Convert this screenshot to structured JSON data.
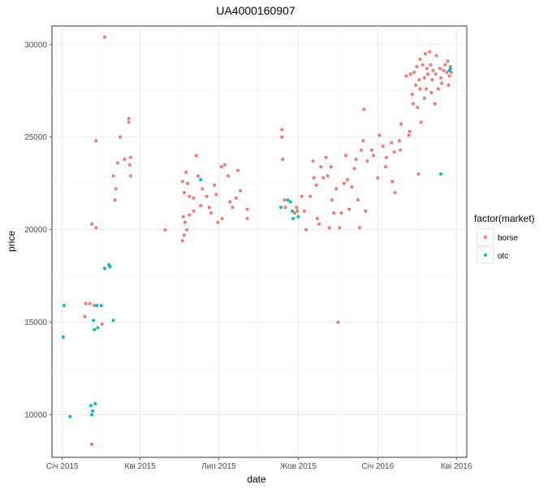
{
  "chart_data": {
    "type": "scatter",
    "title": "UA4000160907",
    "xlabel": "date",
    "ylabel": "price",
    "legend_title": "factor(market)",
    "legend_position": "right",
    "grid": true,
    "xlim": [
      "2014-12-20",
      "2016-04-13"
    ],
    "ylim": [
      7700,
      31000
    ],
    "x_ticks": [
      {
        "value": "2015-01-01",
        "label": "Січ 2015"
      },
      {
        "value": "2015-04-01",
        "label": "Кві 2015"
      },
      {
        "value": "2015-07-01",
        "label": "Лип 2015"
      },
      {
        "value": "2015-10-01",
        "label": "Жов 2015"
      },
      {
        "value": "2016-01-01",
        "label": "Січ 2016"
      },
      {
        "value": "2016-04-01",
        "label": "Кві 2016"
      }
    ],
    "y_ticks": [
      10000,
      15000,
      20000,
      25000,
      30000
    ],
    "series": [
      {
        "name": "borse",
        "color": "#f8766d",
        "points": [
          [
            "2015-01-28",
            16000
          ],
          [
            "2015-01-27",
            15300
          ],
          [
            "2015-02-02",
            16000
          ],
          [
            "2015-02-04",
            20300
          ],
          [
            "2015-02-07",
            15900
          ],
          [
            "2015-02-09",
            20100
          ],
          [
            "2015-02-09",
            24800
          ],
          [
            "2015-02-16",
            14900
          ],
          [
            "2015-02-19",
            30400
          ],
          [
            "2015-02-04",
            8400
          ],
          [
            "2015-03-01",
            22900
          ],
          [
            "2015-03-03",
            21600
          ],
          [
            "2015-03-04",
            22200
          ],
          [
            "2015-03-06",
            23600
          ],
          [
            "2015-03-09",
            25000
          ],
          [
            "2015-03-14",
            23800
          ],
          [
            "2015-03-19",
            26000
          ],
          [
            "2015-03-19",
            25800
          ],
          [
            "2015-03-20",
            23500
          ],
          [
            "2015-03-21",
            23900
          ],
          [
            "2015-03-21",
            22900
          ],
          [
            "2015-04-30",
            20000
          ],
          [
            "2015-05-20",
            22600
          ],
          [
            "2015-05-22",
            22000
          ],
          [
            "2015-05-24",
            23100
          ],
          [
            "2015-05-26",
            22500
          ],
          [
            "2015-05-28",
            21800
          ],
          [
            "2015-05-21",
            20700
          ],
          [
            "2015-05-23",
            20400
          ],
          [
            "2015-05-25",
            20000
          ],
          [
            "2015-05-20",
            19400
          ],
          [
            "2015-05-22",
            19700
          ],
          [
            "2015-05-28",
            20800
          ],
          [
            "2015-06-02",
            21000
          ],
          [
            "2015-06-02",
            21700
          ],
          [
            "2015-06-05",
            24000
          ],
          [
            "2015-06-07",
            22900
          ],
          [
            "2015-06-10",
            21300
          ],
          [
            "2015-06-12",
            22200
          ],
          [
            "2015-06-17",
            21800
          ],
          [
            "2015-06-20",
            21200
          ],
          [
            "2015-06-22",
            20900
          ],
          [
            "2015-06-26",
            22400
          ],
          [
            "2015-06-28",
            21900
          ],
          [
            "2015-06-30",
            20400
          ],
          [
            "2015-07-04",
            23400
          ],
          [
            "2015-07-05",
            20600
          ],
          [
            "2015-07-08",
            23500
          ],
          [
            "2015-07-12",
            22900
          ],
          [
            "2015-07-14",
            21500
          ],
          [
            "2015-07-17",
            21200
          ],
          [
            "2015-07-21",
            21700
          ],
          [
            "2015-07-23",
            23200
          ],
          [
            "2015-07-26",
            22100
          ],
          [
            "2015-08-03",
            21100
          ],
          [
            "2015-08-03",
            20600
          ],
          [
            "2015-09-12",
            25400
          ],
          [
            "2015-09-12",
            25000
          ],
          [
            "2015-09-13",
            23800
          ],
          [
            "2015-09-15",
            21600
          ],
          [
            "2015-09-16",
            21200
          ],
          [
            "2015-09-27",
            20900
          ],
          [
            "2015-09-29",
            21200
          ],
          [
            "2015-09-30",
            21000
          ],
          [
            "2015-10-05",
            21800
          ],
          [
            "2015-10-08",
            21000
          ],
          [
            "2015-10-10",
            20000
          ],
          [
            "2015-10-15",
            21800
          ],
          [
            "2015-10-18",
            23700
          ],
          [
            "2015-10-19",
            22800
          ],
          [
            "2015-10-22",
            22400
          ],
          [
            "2015-10-23",
            20600
          ],
          [
            "2015-10-25",
            20300
          ],
          [
            "2015-10-27",
            23400
          ],
          [
            "2015-10-30",
            22800
          ],
          [
            "2015-11-02",
            23900
          ],
          [
            "2015-11-04",
            22900
          ],
          [
            "2015-11-06",
            20100
          ],
          [
            "2015-11-08",
            23400
          ],
          [
            "2015-11-09",
            21600
          ],
          [
            "2015-11-11",
            20900
          ],
          [
            "2015-11-14",
            22200
          ],
          [
            "2015-11-16",
            15000
          ],
          [
            "2015-11-18",
            20100
          ],
          [
            "2015-11-20",
            20900
          ],
          [
            "2015-11-23",
            22500
          ],
          [
            "2015-11-25",
            24000
          ],
          [
            "2015-11-27",
            22700
          ],
          [
            "2015-11-29",
            21100
          ],
          [
            "2015-12-02",
            22300
          ],
          [
            "2015-12-05",
            23300
          ],
          [
            "2015-12-07",
            23800
          ],
          [
            "2015-12-09",
            21600
          ],
          [
            "2015-12-11",
            20100
          ],
          [
            "2015-12-13",
            24300
          ],
          [
            "2015-12-15",
            24800
          ],
          [
            "2015-12-16",
            26500
          ],
          [
            "2015-12-18",
            21000
          ],
          [
            "2015-12-20",
            23700
          ],
          [
            "2015-12-25",
            24300
          ],
          [
            "2015-12-27",
            24000
          ],
          [
            "2016-01-01",
            22800
          ],
          [
            "2016-01-03",
            25100
          ],
          [
            "2016-01-07",
            24500
          ],
          [
            "2016-01-10",
            23400
          ],
          [
            "2016-01-11",
            23900
          ],
          [
            "2016-01-17",
            24700
          ],
          [
            "2016-01-18",
            22600
          ],
          [
            "2016-01-20",
            24200
          ],
          [
            "2016-01-21",
            22000
          ],
          [
            "2016-01-26",
            24800
          ],
          [
            "2016-01-27",
            24300
          ],
          [
            "2016-01-28",
            25700
          ],
          [
            "2016-02-03",
            28300
          ],
          [
            "2016-02-06",
            25100
          ],
          [
            "2016-02-07",
            25300
          ],
          [
            "2016-02-08",
            28400
          ],
          [
            "2016-02-10",
            27300
          ],
          [
            "2016-02-12",
            28500
          ],
          [
            "2016-02-14",
            27800
          ],
          [
            "2016-02-15",
            28800
          ],
          [
            "2016-02-16",
            26600
          ],
          [
            "2016-02-17",
            23000
          ],
          [
            "2016-02-18",
            28100
          ],
          [
            "2016-02-19",
            29200
          ],
          [
            "2016-02-20",
            25800
          ],
          [
            "2016-02-22",
            28900
          ],
          [
            "2016-02-24",
            28200
          ],
          [
            "2016-02-25",
            29500
          ],
          [
            "2016-02-26",
            27600
          ],
          [
            "2016-02-27",
            28700
          ],
          [
            "2016-02-28",
            28400
          ],
          [
            "2016-03-01",
            29600
          ],
          [
            "2016-03-03",
            27400
          ],
          [
            "2016-03-04",
            28100
          ],
          [
            "2016-03-05",
            28600
          ],
          [
            "2016-03-07",
            26800
          ],
          [
            "2016-03-08",
            28400
          ],
          [
            "2016-03-09",
            29400
          ],
          [
            "2016-03-11",
            27600
          ],
          [
            "2016-03-13",
            28700
          ],
          [
            "2016-03-15",
            27900
          ],
          [
            "2016-03-17",
            28600
          ],
          [
            "2016-03-19",
            28900
          ],
          [
            "2016-03-21",
            28500
          ],
          [
            "2016-03-22",
            29100
          ],
          [
            "2016-03-23",
            27800
          ],
          [
            "2016-03-24",
            28300
          ],
          [
            "2016-03-25",
            28800
          ],
          [
            "2016-03-26",
            28500
          ],
          [
            "2016-02-24",
            27100
          ],
          [
            "2016-02-11",
            26800
          ],
          [
            "2016-02-19",
            27600
          ],
          [
            "2016-03-02",
            28900
          ],
          [
            "2016-03-14",
            28200
          ]
        ]
      },
      {
        "name": "otc",
        "color": "#00bfc4",
        "points": [
          [
            "2015-01-03",
            15900
          ],
          [
            "2015-01-02",
            14200
          ],
          [
            "2015-01-10",
            9900
          ],
          [
            "2015-02-03",
            10500
          ],
          [
            "2015-02-05",
            10200
          ],
          [
            "2015-02-08",
            10600
          ],
          [
            "2015-02-04",
            10000
          ],
          [
            "2015-02-07",
            14600
          ],
          [
            "2015-02-06",
            15100
          ],
          [
            "2015-02-10",
            15900
          ],
          [
            "2015-02-11",
            14700
          ],
          [
            "2015-02-15",
            15900
          ],
          [
            "2015-02-19",
            17900
          ],
          [
            "2015-02-25",
            18000
          ],
          [
            "2015-02-24",
            18100
          ],
          [
            "2015-03-01",
            15100
          ],
          [
            "2015-06-10",
            22700
          ],
          [
            "2015-09-11",
            21200
          ],
          [
            "2015-09-19",
            21600
          ],
          [
            "2015-09-22",
            21500
          ],
          [
            "2015-09-24",
            21000
          ],
          [
            "2015-09-25",
            20600
          ],
          [
            "2015-10-01",
            20700
          ],
          [
            "2016-03-14",
            23000
          ],
          [
            "2016-03-24",
            28600
          ],
          [
            "2016-03-25",
            28700
          ]
        ]
      }
    ]
  }
}
